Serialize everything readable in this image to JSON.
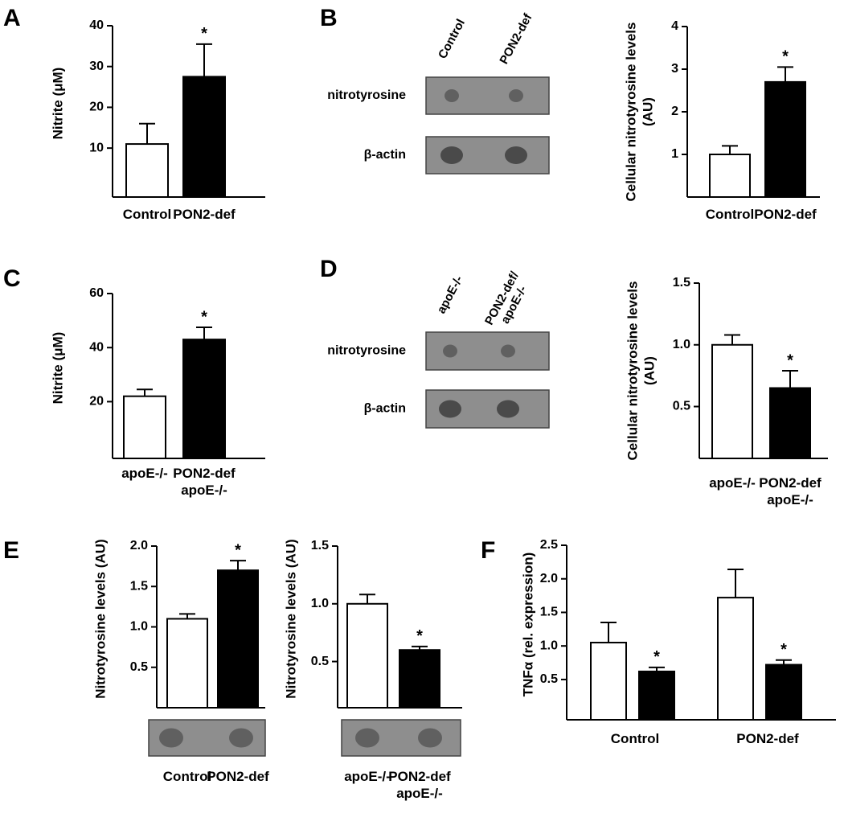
{
  "chart_data": [
    {
      "type": "bar",
      "panel": "A",
      "ylabel": "Nitrite (μM)",
      "categories": [
        "Control",
        "PON2-def"
      ],
      "values": [
        11,
        27.5
      ],
      "errors": [
        5,
        8
      ],
      "significance": [
        null,
        "*"
      ],
      "colors": [
        "#ffffff",
        "#000000"
      ],
      "ylim": [
        -2,
        40
      ],
      "yticks": [
        10,
        20,
        30,
        40
      ]
    },
    {
      "type": "bar",
      "panel": "B",
      "blot": {
        "columns": [
          "Control",
          "PON2-def"
        ],
        "rows": [
          "nitrotyrosine",
          "β-actin"
        ]
      },
      "ylabel": "Cellular nitrotyrosine levels (AU)",
      "categories": [
        "Control",
        "PON2-def"
      ],
      "values": [
        1,
        2.7
      ],
      "errors": [
        0.2,
        0.35
      ],
      "significance": [
        null,
        "*"
      ],
      "colors": [
        "#ffffff",
        "#000000"
      ],
      "ylim": [
        0,
        4
      ],
      "yticks": [
        1,
        2,
        3,
        4
      ]
    },
    {
      "type": "bar",
      "panel": "C",
      "ylabel": "Nitrite (μM)",
      "categories": [
        "apoE-/-",
        "PON2-def apoE-/-"
      ],
      "values": [
        22,
        43
      ],
      "errors": [
        2.5,
        4.5
      ],
      "significance": [
        null,
        "*"
      ],
      "colors": [
        "#ffffff",
        "#000000"
      ],
      "ylim": [
        -1,
        60
      ],
      "yticks": [
        20,
        40,
        60
      ]
    },
    {
      "type": "bar",
      "panel": "D",
      "blot": {
        "columns": [
          "apoE-/-",
          "PON2-def/ apoE-/-"
        ],
        "rows": [
          "nitrotyrosine",
          "β-actin"
        ]
      },
      "ylabel": "Cellular nitrotyrosine levels (AU)",
      "categories": [
        "apoE-/-",
        "PON2-def apoE-/-"
      ],
      "values": [
        1.0,
        0.65
      ],
      "errors": [
        0.08,
        0.14
      ],
      "significance": [
        null,
        "*"
      ],
      "colors": [
        "#ffffff",
        "#000000"
      ],
      "ylim": [
        0.08,
        1.5
      ],
      "yticks": [
        0.5,
        {
          "value": 1,
          "label": "1.0"
        },
        1.5
      ]
    },
    {
      "type": "bar",
      "panel": "E",
      "ylabel": "Nitrotyrosine levels (AU)",
      "categories": [
        "Control",
        "PON2-def"
      ],
      "values": [
        1.1,
        1.7
      ],
      "errors": [
        0.06,
        0.12
      ],
      "significance": [
        null,
        "*"
      ],
      "colors": [
        "#ffffff",
        "#000000"
      ],
      "ylim": [
        0,
        2
      ],
      "yticks": [
        0.5,
        {
          "value": 1,
          "label": "1.0"
        },
        1.5,
        {
          "value": 2,
          "label": "2.0"
        }
      ]
    },
    {
      "type": "bar",
      "ylabel": "Nitrotyrosine levels (AU)",
      "categories": [
        "apoE-/-",
        "PON2-def apoE-/-"
      ],
      "values": [
        1.0,
        0.6
      ],
      "errors": [
        0.08,
        0.03
      ],
      "significance": [
        null,
        "*"
      ],
      "colors": [
        "#ffffff",
        "#000000"
      ],
      "ylim": [
        0.1,
        1.5
      ],
      "yticks": [
        0.5,
        {
          "value": 1,
          "label": "1.0"
        },
        1.5
      ]
    },
    {
      "type": "grouped_bar",
      "panel": "F",
      "ylabel": "TNFα (rel. expression)",
      "categories": [
        "Control",
        "PON2-def"
      ],
      "series": [
        {
          "color": "#ffffff",
          "values": [
            1.05,
            1.72
          ],
          "errors": [
            0.3,
            0.42
          ],
          "significance": [
            null,
            null
          ]
        },
        {
          "color": "#000000",
          "values": [
            0.62,
            0.72
          ],
          "errors": [
            0.06,
            0.07
          ],
          "significance": [
            "*",
            "*"
          ]
        }
      ],
      "ylim": [
        -0.1,
        2.5
      ],
      "yticks": [
        0.5,
        {
          "value": 1,
          "label": "1.0"
        },
        1.5,
        {
          "value": 2,
          "label": "2.0"
        },
        2.5
      ]
    }
  ]
}
